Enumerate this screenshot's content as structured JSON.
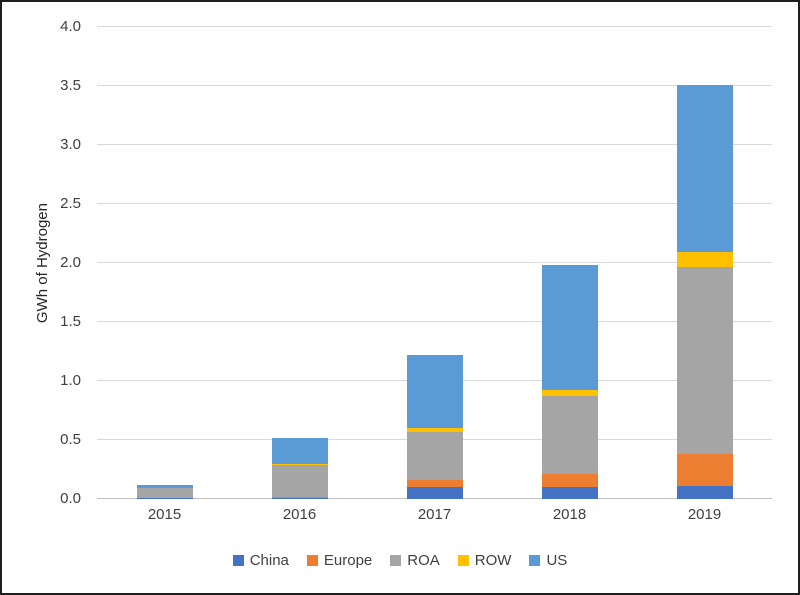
{
  "chart_data": {
    "type": "bar",
    "stacked": true,
    "title": "",
    "xlabel": "",
    "ylabel": "GWh of Hydrogen",
    "ylim": [
      0,
      4.0
    ],
    "yticks": [
      "0.0",
      "0.5",
      "1.0",
      "1.5",
      "2.0",
      "2.5",
      "3.0",
      "3.5",
      "4.0"
    ],
    "grid": true,
    "grid_color": "#d9d9d9",
    "legend_position": "bottom",
    "categories": [
      "2015",
      "2016",
      "2017",
      "2018",
      "2019"
    ],
    "series": [
      {
        "name": "China",
        "color": "#4472C4",
        "values": [
          0.01,
          0.01,
          0.1,
          0.1,
          0.11
        ]
      },
      {
        "name": "Europe",
        "color": "#ED7D31",
        "values": [
          0.0,
          0.01,
          0.06,
          0.11,
          0.27
        ]
      },
      {
        "name": "ROA",
        "color": "#A5A5A5",
        "values": [
          0.08,
          0.27,
          0.41,
          0.66,
          1.59
        ]
      },
      {
        "name": "ROW",
        "color": "#FFC000",
        "values": [
          0.0,
          0.01,
          0.03,
          0.05,
          0.12
        ]
      },
      {
        "name": "US",
        "color": "#5B9BD5",
        "values": [
          0.03,
          0.22,
          0.62,
          1.06,
          1.42
        ]
      }
    ]
  }
}
